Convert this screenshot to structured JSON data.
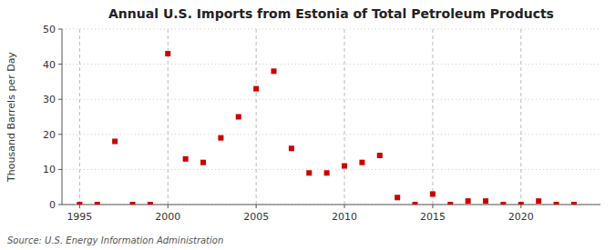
{
  "chart_data": {
    "type": "scatter",
    "title": "Annual U.S. Imports from Estonia of Total Petroleum Products",
    "y_label": "Thousand Barrels per Day",
    "source": "Source: U.S. Energy Information Administration",
    "x": [
      1995,
      1996,
      1997,
      1998,
      1999,
      2000,
      2001,
      2002,
      2003,
      2004,
      2005,
      2006,
      2007,
      2008,
      2009,
      2010,
      2011,
      2012,
      2013,
      2014,
      2015,
      2016,
      2017,
      2018,
      2019,
      2020,
      2021,
      2022,
      2023
    ],
    "values": [
      0,
      0,
      18,
      0,
      0,
      43,
      13,
      12,
      19,
      25,
      33,
      38,
      16,
      9,
      9,
      11,
      12,
      14,
      2,
      0,
      3,
      0,
      1,
      1,
      0,
      0,
      1,
      0,
      0
    ],
    "color": "#cc0000",
    "marker": "square",
    "xlim": [
      1994.0,
      2024.5
    ],
    "ylim": [
      0,
      50
    ],
    "yticks": [
      0,
      10,
      20,
      30,
      40,
      50
    ],
    "xticks": [
      1995,
      2000,
      2005,
      2010,
      2015,
      2020
    ],
    "grid": true
  }
}
